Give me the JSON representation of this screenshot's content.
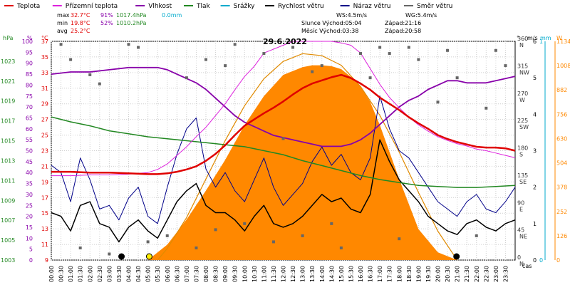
{
  "chart_data": {
    "type": "line",
    "title": "29.6.2022",
    "legend": [
      {
        "label": "Teplota",
        "color": "#e00000"
      },
      {
        "label": "Přízemní teplota",
        "color": "#dd22dd"
      },
      {
        "label": "Vlhkost",
        "color": "#8800aa"
      },
      {
        "label": "Tlak",
        "color": "#228822"
      },
      {
        "label": "Srážky",
        "color": "#00aacc"
      },
      {
        "label": "Rychlost větru",
        "color": "#000000"
      },
      {
        "label": "Náraz větru",
        "color": "#000088"
      },
      {
        "label": "Směr větru",
        "color": "#666666"
      }
    ],
    "stats": {
      "max": {
        "label": "max",
        "temp": "32.7°C",
        "hum": "91%",
        "press": "1017.4hPa",
        "rain": "0.0mm"
      },
      "min": {
        "label": "min",
        "temp": "19.8°C",
        "hum": "52%",
        "press": "1010.2hPa"
      },
      "avg": {
        "label": "avg",
        "temp": "25.2°C"
      }
    },
    "info": {
      "ws": "WS:4.5m/s",
      "wg": "WG:5.4m/s",
      "sun_rise": "Slunce Východ:05:04",
      "sun_set": "Západ:21:16",
      "moon_rise": "Měsíc Východ:03:38",
      "moon_set": "Západ:20:58"
    },
    "axes": {
      "hpa": {
        "label": "hPa",
        "range": [
          1003,
          1025
        ],
        "ticks": [
          1003,
          1005,
          1007,
          1009,
          1011,
          1013,
          1015,
          1017,
          1019,
          1021,
          1023
        ]
      },
      "percent": {
        "label": "%",
        "range": [
          0,
          100
        ],
        "ticks": [
          0,
          5,
          10,
          15,
          20,
          25,
          30,
          35,
          40,
          45,
          50,
          55,
          60,
          65,
          70,
          75,
          80,
          85,
          90,
          95,
          100
        ]
      },
      "celsius": {
        "label": "°C",
        "range": [
          9,
          37
        ],
        "ticks": [
          9,
          11,
          13,
          15,
          17,
          19,
          21,
          23,
          25,
          27,
          29,
          31,
          33,
          35,
          37
        ]
      },
      "degrees": {
        "label": "°",
        "range": [
          0,
          360
        ],
        "ticks": [
          0,
          45,
          90,
          135,
          180,
          225,
          270,
          315,
          360
        ],
        "dirs": [
          "N",
          "NE",
          "E",
          "SE",
          "S",
          "SW",
          "W",
          "NW",
          "N"
        ]
      },
      "ms": {
        "label": "m/s",
        "range": [
          0,
          6
        ],
        "ticks": [
          0,
          1,
          2,
          3,
          4,
          5,
          6
        ]
      },
      "mm": {
        "label": "mm",
        "range": [
          0,
          1
        ],
        "ticks": [
          0,
          1
        ]
      },
      "watt": {
        "label": "W",
        "range": [
          0,
          1134
        ],
        "ticks": [
          0,
          126,
          252,
          378,
          504,
          630,
          756,
          882,
          1008,
          1134
        ]
      },
      "x_label": "čas",
      "x_ticks": [
        "00:00",
        "00:30",
        "01:00",
        "01:30",
        "02:00",
        "02:30",
        "03:00",
        "03:30",
        "04:00",
        "04:30",
        "05:00",
        "05:30",
        "06:00",
        "06:30",
        "07:00",
        "07:30",
        "08:00",
        "08:30",
        "09:00",
        "09:30",
        "10:00",
        "10:30",
        "11:00",
        "11:30",
        "12:00",
        "12:30",
        "13:00",
        "13:30",
        "14:00",
        "14:30",
        "15:00",
        "15:30",
        "16:00",
        "16:30",
        "17:00",
        "17:30",
        "18:00",
        "18:30",
        "19:00",
        "19:30",
        "20:00",
        "20:30",
        "21:00",
        "21:30",
        "22:00",
        "22:30",
        "23:00",
        "23:30"
      ],
      "grid": true
    },
    "temperature": {
      "name": "Teplota",
      "unit": "°C",
      "x": [
        0,
        1,
        2,
        3,
        4,
        5,
        5.5,
        6,
        6.5,
        7,
        7.5,
        8,
        8.5,
        9,
        9.5,
        10,
        10.5,
        11,
        11.5,
        12,
        12.5,
        13,
        13.5,
        14,
        14.5,
        15,
        15.5,
        16,
        16.5,
        17,
        17.5,
        18,
        18.5,
        19,
        19.5,
        20,
        20.5,
        21,
        21.5,
        22,
        22.5,
        23,
        23.5,
        24
      ],
      "y": [
        20.3,
        20.3,
        20.2,
        20.2,
        20.1,
        20.0,
        20.0,
        20.1,
        20.3,
        20.6,
        21.0,
        21.7,
        22.6,
        23.7,
        25.0,
        26.2,
        27.0,
        27.8,
        28.5,
        29.3,
        30.2,
        31.0,
        31.6,
        32.0,
        32.4,
        32.7,
        32.3,
        31.6,
        30.8,
        29.8,
        29.0,
        28.2,
        27.3,
        26.5,
        25.8,
        25.0,
        24.5,
        24.1,
        23.8,
        23.5,
        23.4,
        23.4,
        23.3,
        23.0
      ]
    },
    "ground_temperature": {
      "name": "Přízemní teplota",
      "unit": "°C",
      "x": [
        0,
        1,
        2,
        3,
        4,
        5,
        5.5,
        6,
        6.5,
        7,
        7.5,
        8,
        8.5,
        9,
        9.5,
        10,
        10.5,
        11,
        11.5,
        12,
        12.5,
        13,
        13.5,
        14,
        14.5,
        15,
        15.5,
        16,
        16.5,
        17,
        17.5,
        18,
        18.5,
        19,
        19.5,
        20,
        20.5,
        21,
        21.5,
        22,
        22.5,
        23,
        23.5,
        24
      ],
      "y": [
        19.8,
        19.8,
        19.9,
        19.9,
        20.0,
        20.2,
        20.6,
        21.3,
        22.4,
        23.5,
        24.8,
        26.0,
        27.5,
        29.0,
        30.8,
        32.5,
        33.8,
        35.5,
        36.0,
        36.5,
        37.0,
        37.0,
        37.0,
        37.0,
        37.0,
        36.8,
        36.5,
        35.5,
        33.5,
        31.5,
        29.8,
        28.5,
        27.3,
        26.3,
        25.5,
        24.8,
        24.3,
        23.9,
        23.6,
        23.2,
        23.0,
        22.7,
        22.4,
        22.1
      ]
    },
    "humidity": {
      "name": "Vlhkost",
      "unit": "%",
      "x": [
        0,
        1,
        2,
        3,
        4,
        5,
        5.5,
        6,
        6.5,
        7,
        7.5,
        8,
        8.5,
        9,
        9.5,
        10,
        10.5,
        11,
        11.5,
        12,
        12.5,
        13,
        13.5,
        14,
        14.5,
        15,
        15.5,
        16,
        16.5,
        17,
        17.5,
        18,
        18.5,
        19,
        19.5,
        20,
        20.5,
        21,
        21.5,
        22,
        22.5,
        23,
        23.5,
        24
      ],
      "y": [
        85,
        86,
        86,
        87,
        88,
        88,
        88,
        87,
        85,
        83,
        81,
        78,
        74,
        70,
        66,
        63,
        61,
        59,
        57,
        56,
        55,
        54,
        53,
        52,
        52,
        52,
        53,
        55,
        58,
        62,
        66,
        70,
        73,
        75,
        78,
        80,
        82,
        82,
        81,
        81,
        81,
        82,
        83,
        84
      ]
    },
    "pressure": {
      "name": "Tlak",
      "unit": "hPa",
      "x": [
        0,
        1,
        2,
        3,
        4,
        5,
        6,
        7,
        8,
        9,
        10,
        11,
        12,
        13,
        14,
        15,
        16,
        17,
        18,
        19,
        20,
        21,
        22,
        23,
        24
      ],
      "y": [
        1017.4,
        1016.9,
        1016.5,
        1016.0,
        1015.7,
        1015.4,
        1015.2,
        1015.0,
        1014.8,
        1014.6,
        1014.4,
        1014.0,
        1013.6,
        1013.0,
        1012.5,
        1012.0,
        1011.5,
        1011.1,
        1010.8,
        1010.5,
        1010.4,
        1010.3,
        1010.3,
        1010.4,
        1010.5
      ]
    },
    "wind_speed": {
      "name": "Rychlost větru",
      "unit": "m/s",
      "x": [
        0,
        0.5,
        1,
        1.5,
        2,
        2.5,
        3,
        3.5,
        4,
        4.5,
        5,
        5.5,
        6,
        6.5,
        7,
        7.5,
        8,
        8.5,
        9,
        9.5,
        10,
        10.5,
        11,
        11.5,
        12,
        12.5,
        13,
        13.5,
        14,
        14.5,
        15,
        15.5,
        16,
        16.5,
        17,
        17.5,
        18,
        18.5,
        19,
        19.5,
        20,
        20.5,
        21,
        21.5,
        22,
        22.5,
        23,
        23.5,
        24
      ],
      "y": [
        1.3,
        1.2,
        0.8,
        1.5,
        1.6,
        1.0,
        0.9,
        0.5,
        0.9,
        1.1,
        0.8,
        0.6,
        1.1,
        1.6,
        1.9,
        2.1,
        1.5,
        1.3,
        1.3,
        1.1,
        0.8,
        1.2,
        1.5,
        1.0,
        0.9,
        1.0,
        1.2,
        1.5,
        1.8,
        1.6,
        1.7,
        1.4,
        1.3,
        1.8,
        3.3,
        2.7,
        2.2,
        1.9,
        1.6,
        1.2,
        1.0,
        0.8,
        0.7,
        1.0,
        1.1,
        0.9,
        0.8,
        1.0,
        1.1
      ]
    },
    "wind_gust": {
      "name": "Náraz větru",
      "unit": "m/s",
      "x": [
        0,
        0.5,
        1,
        1.5,
        2,
        2.5,
        3,
        3.5,
        4,
        4.5,
        5,
        5.5,
        6,
        6.5,
        7,
        7.5,
        8,
        8.5,
        9,
        9.5,
        10,
        10.5,
        11,
        11.5,
        12,
        12.5,
        13,
        13.5,
        14,
        14.5,
        15,
        15.5,
        16,
        16.5,
        17,
        17.5,
        18,
        18.5,
        19,
        19.5,
        20,
        20.5,
        21,
        21.5,
        22,
        22.5,
        23,
        23.5,
        24
      ],
      "y": [
        2.6,
        2.4,
        1.6,
        2.8,
        2.2,
        1.4,
        1.5,
        1.1,
        1.7,
        2.0,
        1.2,
        1.0,
        2.0,
        2.9,
        3.6,
        3.9,
        2.5,
        2.0,
        2.4,
        1.9,
        1.6,
        2.2,
        2.8,
        2.0,
        1.5,
        1.8,
        2.1,
        2.7,
        3.1,
        2.6,
        2.9,
        2.4,
        2.2,
        2.8,
        4.5,
        3.6,
        3.0,
        2.8,
        2.4,
        2.0,
        1.6,
        1.4,
        1.2,
        1.6,
        1.8,
        1.4,
        1.3,
        1.6,
        2.0
      ]
    },
    "wind_direction": {
      "name": "Směr větru",
      "unit": "°",
      "x": [
        0.5,
        1,
        1.5,
        2,
        2.5,
        3,
        4,
        4.5,
        5,
        6,
        7,
        7.5,
        8,
        8.5,
        9,
        9.5,
        10,
        11,
        11.5,
        12,
        12.5,
        13,
        13.5,
        14,
        14.5,
        15,
        16,
        16.5,
        17,
        17.5,
        18,
        18.5,
        19,
        20,
        20.5,
        21,
        22,
        22.5,
        23,
        23.5
      ],
      "y": [
        355,
        330,
        20,
        305,
        290,
        10,
        355,
        350,
        30,
        40,
        300,
        20,
        330,
        50,
        320,
        355,
        60,
        340,
        30,
        200,
        350,
        40,
        310,
        320,
        60,
        20,
        340,
        300,
        350,
        340,
        35,
        350,
        330,
        260,
        345,
        300,
        40,
        250,
        345,
        320
      ]
    },
    "solar_radiation": {
      "name": "Sluneční záření",
      "unit": "W",
      "x": [
        5,
        6,
        7,
        8,
        9,
        10,
        11,
        12,
        13,
        13.5,
        14,
        14.5,
        15,
        15.5,
        16,
        16.5,
        17,
        17.5,
        18,
        19,
        20,
        21
      ],
      "y": [
        0,
        80,
        210,
        360,
        520,
        700,
        850,
        960,
        1000,
        1010,
        1010,
        1005,
        990,
        950,
        900,
        820,
        700,
        560,
        420,
        160,
        40,
        0
      ]
    },
    "solar_theoretical": {
      "name": "Teoretické záření",
      "unit": "W",
      "x": [
        5.5,
        6,
        7,
        8,
        9,
        10,
        11,
        12,
        13,
        14,
        15,
        16,
        17,
        18,
        19,
        20,
        21
      ],
      "y": [
        0,
        60,
        220,
        420,
        620,
        800,
        940,
        1030,
        1070,
        1060,
        1010,
        900,
        750,
        560,
        350,
        150,
        0
      ]
    },
    "events": [
      {
        "time": "03:38",
        "kind": "moonrise"
      },
      {
        "time": "05:04",
        "kind": "sunrise"
      },
      {
        "time": "20:58",
        "kind": "moonset"
      }
    ]
  }
}
